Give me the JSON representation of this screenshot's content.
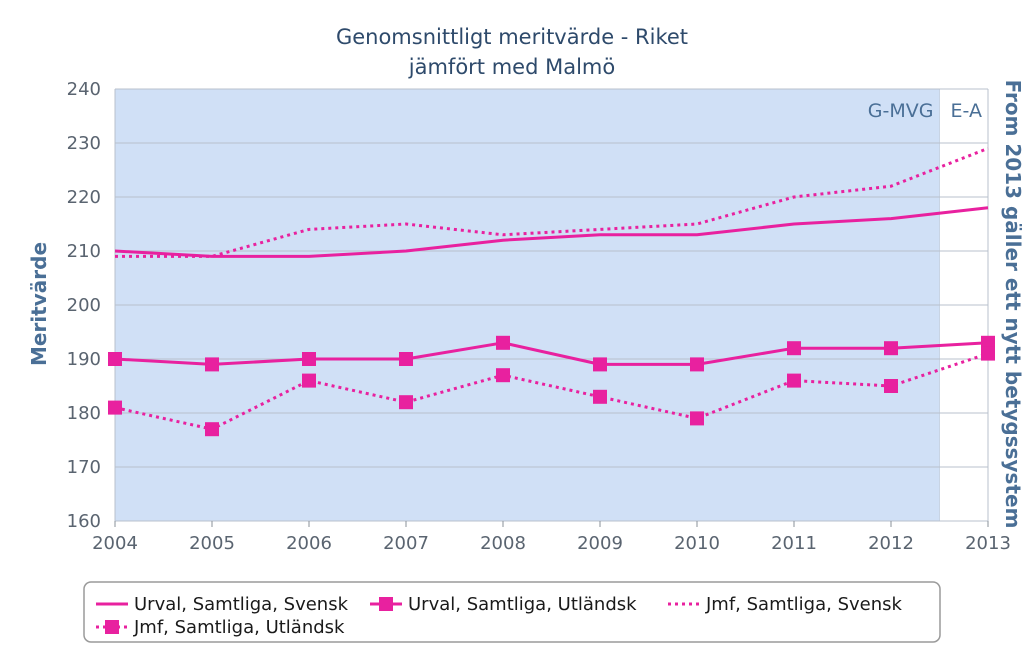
{
  "chart_data": {
    "type": "line",
    "title": "Genomsnittligt meritvärde - Riket",
    "subtitle": "jämfört med Malmö",
    "ylabel": "Meritvärde",
    "right_label": "From 2013 gäller ett nytt betygssystem",
    "xlabel": "",
    "x": [
      "2004",
      "2005",
      "2006",
      "2007",
      "2008",
      "2009",
      "2010",
      "2011",
      "2012",
      "2013"
    ],
    "ylim": [
      160,
      240
    ],
    "yticks": [
      160,
      170,
      180,
      190,
      200,
      210,
      220,
      230,
      240
    ],
    "grid": true,
    "legend_position": "bottom",
    "bands": [
      {
        "label": "G-MVG",
        "from": "2004",
        "to": "2012.5",
        "color": "#d0e0f6"
      },
      {
        "label": "E-A",
        "from": "2012.5",
        "to": "2013",
        "color": "#ffffff"
      }
    ],
    "series": [
      {
        "name": "Urval, Samtliga, Svensk",
        "style": "solid",
        "marker": "none",
        "color": "#e8219f",
        "values": [
          210,
          209,
          209,
          210,
          212,
          213,
          213,
          215,
          216,
          218
        ]
      },
      {
        "name": "Urval, Samtliga, Utländsk",
        "style": "solid",
        "marker": "square",
        "color": "#e8219f",
        "values": [
          190,
          189,
          190,
          190,
          193,
          189,
          189,
          192,
          192,
          193
        ]
      },
      {
        "name": "Jmf, Samtliga, Svensk",
        "style": "dotted",
        "marker": "none",
        "color": "#e8219f",
        "values": [
          209,
          209,
          214,
          215,
          213,
          214,
          215,
          220,
          222,
          229
        ]
      },
      {
        "name": "Jmf, Samtliga, Utländsk",
        "style": "dotted",
        "marker": "square",
        "color": "#e8219f",
        "values": [
          181,
          177,
          186,
          182,
          187,
          183,
          179,
          186,
          185,
          191
        ]
      }
    ]
  }
}
